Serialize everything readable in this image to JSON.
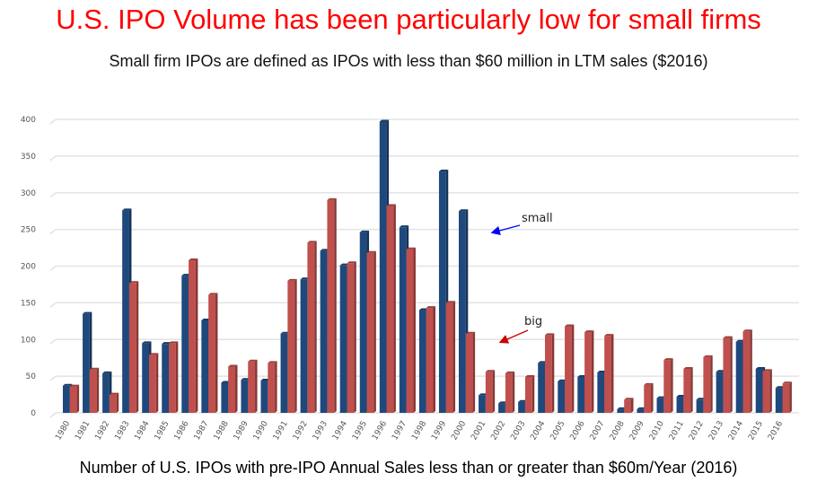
{
  "header": {
    "title": "U.S. IPO Volume has been particularly low for small firms",
    "subtitle": "Small firm IPOs are defined as IPOs with less than $60 million in LTM sales ($2016)"
  },
  "chart_data": {
    "type": "bar",
    "title": "U.S. IPO Volume has been particularly low for small firms",
    "subtitle": "Small firm IPOs are defined as IPOs with less than $60 million in LTM sales ($2016)",
    "xlabel": "Number of U.S. IPOs with pre-IPO Annual Sales less than or greater than $60m/Year (2016)",
    "ylabel": "",
    "ylim": [
      0,
      400
    ],
    "yticks": [
      0,
      50,
      100,
      150,
      200,
      250,
      300,
      350,
      400
    ],
    "grid": true,
    "categories": [
      "1980",
      "1981",
      "1982",
      "1983",
      "1984",
      "1985",
      "1986",
      "1987",
      "1988",
      "1989",
      "1990",
      "1991",
      "1992",
      "1993",
      "1994",
      "1995",
      "1996",
      "1997",
      "1998",
      "1999",
      "2000",
      "2001",
      "2002",
      "2003",
      "2004",
      "2005",
      "2006",
      "2007",
      "2008",
      "2009",
      "2010",
      "2011",
      "2012",
      "2013",
      "2014",
      "2015",
      "2016"
    ],
    "series": [
      {
        "name": "small",
        "color": "#1f497d",
        "values": [
          37,
          135,
          54,
          276,
          95,
          94,
          187,
          126,
          41,
          45,
          44,
          108,
          182,
          221,
          201,
          246,
          397,
          253,
          140,
          329,
          275,
          24,
          13,
          15,
          68,
          43,
          49,
          55,
          5,
          5,
          20,
          22,
          18,
          56,
          97,
          60,
          34
        ]
      },
      {
        "name": "big",
        "color": "#c0504d",
        "values": [
          36,
          59,
          25,
          177,
          79,
          95,
          208,
          161,
          63,
          70,
          68,
          180,
          232,
          290,
          204,
          218,
          282,
          223,
          143,
          150,
          108,
          56,
          54,
          49,
          106,
          118,
          110,
          105,
          18,
          38,
          72,
          60,
          76,
          102,
          111,
          57,
          40
        ]
      }
    ],
    "annotations": [
      {
        "text": "small",
        "color": "#0000ff",
        "points_to": "2000-2001 region, small series"
      },
      {
        "text": "big",
        "color": "#cc0000",
        "points_to": "2001-2002 region, big series"
      }
    ],
    "legend": "none (inline annotations)"
  }
}
